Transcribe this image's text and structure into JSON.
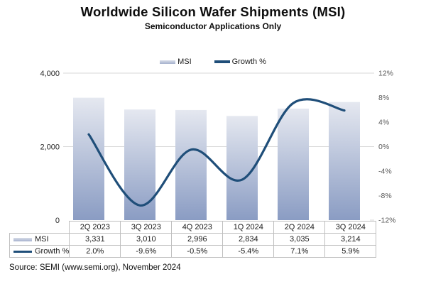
{
  "chart_data": {
    "type": "combo-bar-line",
    "title": "Worldwide Silicon Wafer Shipments (MSI)",
    "subtitle": "Semiconductor Applications Only",
    "categories": [
      "2Q 2023",
      "3Q 2023",
      "4Q 2023",
      "1Q 2024",
      "2Q 2024",
      "3Q 2024"
    ],
    "series": [
      {
        "name": "MSI",
        "type": "bar",
        "axis": "left",
        "values": [
          3331,
          3010,
          2996,
          2834,
          3035,
          3214
        ],
        "display_values": [
          "3,331",
          "3,010",
          "2,996",
          "2,834",
          "3,035",
          "3,214"
        ]
      },
      {
        "name": "Growth %",
        "type": "line",
        "axis": "right",
        "smooth": true,
        "values": [
          2.0,
          -9.6,
          -0.5,
          -5.4,
          7.1,
          5.9
        ],
        "display_values": [
          "2.0%",
          "-9.6%",
          "-0.5%",
          "-5.4%",
          "7.1%",
          "5.9%"
        ]
      }
    ],
    "left_axis": {
      "min": 0,
      "max": 4000,
      "ticks": [
        {
          "value": 4000,
          "label": "4,000"
        },
        {
          "value": 2000,
          "label": "2,000"
        },
        {
          "value": 0,
          "label": "0"
        }
      ]
    },
    "right_axis": {
      "min": -12,
      "max": 12,
      "ticks": [
        {
          "value": 12,
          "label": "12%"
        },
        {
          "value": 8,
          "label": "8%"
        },
        {
          "value": 4,
          "label": "4%"
        },
        {
          "value": 0,
          "label": "0%"
        },
        {
          "value": -4,
          "label": "-4%"
        },
        {
          "value": -8,
          "label": "-8%"
        },
        {
          "value": -12,
          "label": "-12%"
        }
      ]
    },
    "legend_position": "top",
    "grid": "horizontal-major",
    "colors": {
      "bar_top": "#e5e8f0",
      "bar_bottom": "#8a9cc3",
      "line": "#1f4e79",
      "grid": "#d9d9d9",
      "left_axis_text": "#262626",
      "right_axis_text": "#595959",
      "table_border": "#bfbfbf"
    }
  },
  "source": "Source: SEMI (www.semi.org), November 2024"
}
